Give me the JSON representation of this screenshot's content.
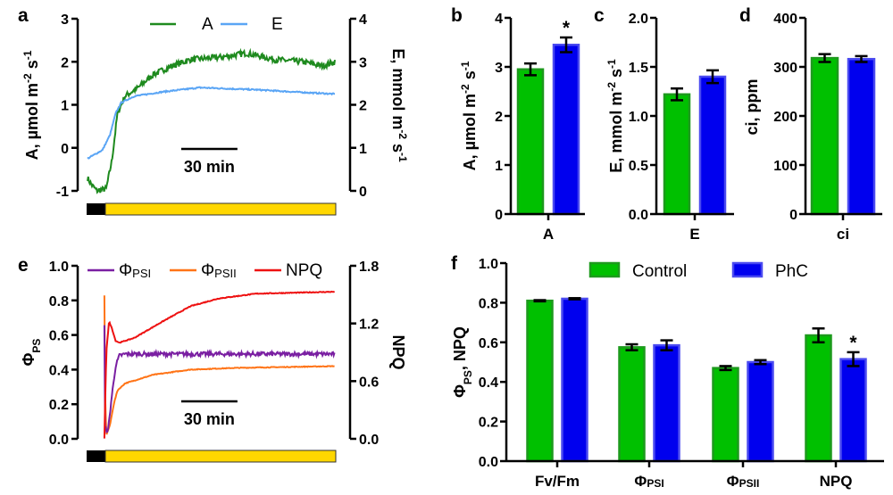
{
  "chart_data": [
    {
      "panel": "a",
      "type": "line",
      "legend": [
        {
          "name": "A",
          "color": "#1e8a1e"
        },
        {
          "name": "E",
          "color": "#5aa5f5"
        }
      ],
      "x_range_min": [
        0,
        132
      ],
      "scale_bar": {
        "minutes": 30,
        "label": "30 min"
      },
      "light_regime": {
        "dark_min": [
          0,
          10
        ],
        "light_min": [
          10,
          132
        ],
        "dark_color": "#000000",
        "light_color": "#ffd700"
      },
      "y_left": {
        "label_parts": [
          {
            "t": "A, µmol m"
          },
          {
            "t": "-2",
            "sup": true
          },
          {
            "t": " s"
          },
          {
            "t": "-1",
            "sup": true
          }
        ],
        "ticks": [
          "-1",
          "0",
          "1",
          "2",
          "3"
        ],
        "range": [
          -1,
          3
        ]
      },
      "y_right": {
        "label_parts": [
          {
            "t": "E, mmol m"
          },
          {
            "t": "-2",
            "sup": true
          },
          {
            "t": " s"
          },
          {
            "t": "-1",
            "sup": true
          }
        ],
        "ticks": [
          "0",
          "1",
          "2",
          "3",
          "4"
        ],
        "range": [
          0,
          4
        ]
      },
      "series": [
        {
          "name": "A",
          "axis": "left",
          "color": "#1e8a1e",
          "noise": 0.07,
          "points": [
            [
              0,
              -0.7
            ],
            [
              2,
              -0.85
            ],
            [
              5,
              -1.0
            ],
            [
              10,
              -0.95
            ],
            [
              13,
              -0.3
            ],
            [
              16,
              0.8
            ],
            [
              20,
              1.2
            ],
            [
              27,
              1.4
            ],
            [
              35,
              1.7
            ],
            [
              45,
              1.9
            ],
            [
              55,
              2.05
            ],
            [
              70,
              2.1
            ],
            [
              85,
              2.2
            ],
            [
              100,
              2.05
            ],
            [
              115,
              2.0
            ],
            [
              125,
              1.9
            ],
            [
              132,
              2.0
            ]
          ]
        },
        {
          "name": "E",
          "axis": "right",
          "color": "#5aa5f5",
          "noise": 0.015,
          "points": [
            [
              0,
              0.75
            ],
            [
              8,
              0.95
            ],
            [
              12,
              1.3
            ],
            [
              15,
              1.8
            ],
            [
              18,
              2.05
            ],
            [
              25,
              2.2
            ],
            [
              40,
              2.3
            ],
            [
              60,
              2.4
            ],
            [
              90,
              2.35
            ],
            [
              110,
              2.3
            ],
            [
              132,
              2.25
            ]
          ]
        }
      ]
    },
    {
      "panel": "b",
      "type": "bar",
      "categories": [
        {
          "main": "A",
          "sub": ""
        }
      ],
      "ylabel_parts": [
        {
          "t": "A, µmol m"
        },
        {
          "t": "-2",
          "sup": true
        },
        {
          "t": " s"
        },
        {
          "t": "-1",
          "sup": true
        }
      ],
      "ticks": [
        "0",
        "1",
        "2",
        "3",
        "4"
      ],
      "ylim": [
        0,
        4
      ],
      "series": [
        {
          "name": "Control",
          "color": "#00c000",
          "values": [
            2.95
          ],
          "errors": [
            0.12
          ],
          "significance": [
            ""
          ]
        },
        {
          "name": "PhC",
          "color": "#0000ee",
          "values": [
            3.45
          ],
          "errors": [
            0.15
          ],
          "significance": [
            "*"
          ]
        }
      ]
    },
    {
      "panel": "c",
      "type": "bar",
      "categories": [
        {
          "main": "E",
          "sub": ""
        }
      ],
      "ylabel_parts": [
        {
          "t": "E, mmol m"
        },
        {
          "t": "-2",
          "sup": true
        },
        {
          "t": " s"
        },
        {
          "t": "-1",
          "sup": true
        }
      ],
      "ticks": [
        "0.0",
        "0.5",
        "1.0",
        "1.5",
        "2.0"
      ],
      "ylim": [
        0,
        2
      ],
      "series": [
        {
          "name": "Control",
          "color": "#00c000",
          "values": [
            1.22
          ],
          "errors": [
            0.06
          ],
          "significance": [
            ""
          ]
        },
        {
          "name": "PhC",
          "color": "#0000ee",
          "values": [
            1.4
          ],
          "errors": [
            0.065
          ],
          "significance": [
            ""
          ]
        }
      ]
    },
    {
      "panel": "d",
      "type": "bar",
      "categories": [
        {
          "main": "ci",
          "sub": ""
        }
      ],
      "ylabel_parts": [
        {
          "t": "ci, ppm"
        }
      ],
      "ticks": [
        "0",
        "100",
        "200",
        "300",
        "400"
      ],
      "ylim": [
        0,
        400
      ],
      "series": [
        {
          "name": "Control",
          "color": "#00c000",
          "values": [
            318
          ],
          "errors": [
            8
          ],
          "significance": [
            ""
          ]
        },
        {
          "name": "PhC",
          "color": "#0000ee",
          "values": [
            316
          ],
          "errors": [
            6
          ],
          "significance": [
            ""
          ]
        }
      ]
    },
    {
      "panel": "e",
      "type": "line",
      "legend": [
        {
          "name": "Φ",
          "sub": "PSI",
          "color": "#7a1fa2"
        },
        {
          "name": "Φ",
          "sub": "PSII",
          "color": "#ff7417"
        },
        {
          "name": "NPQ",
          "sub": "",
          "color": "#ee1111"
        }
      ],
      "x_range_min": [
        0,
        132
      ],
      "scale_bar": {
        "minutes": 30,
        "label": "30 min"
      },
      "light_regime": {
        "dark_min": [
          0,
          10
        ],
        "light_min": [
          10,
          132
        ],
        "dark_color": "#000000",
        "light_color": "#ffd700"
      },
      "y_left": {
        "label_parts": [
          {
            "t": "Φ"
          },
          {
            "t": "PS",
            "sub": true
          }
        ],
        "ticks": [
          "0.0",
          "0.2",
          "0.4",
          "0.6",
          "0.8",
          "1.0"
        ],
        "range": [
          0,
          1
        ]
      },
      "y_right": {
        "label_parts": [
          {
            "t": "NPQ"
          }
        ],
        "ticks": [
          "0.0",
          "0.6",
          "1.2",
          "1.8"
        ],
        "range": [
          0,
          1.8
        ]
      },
      "series": [
        {
          "name": "ΦPSII",
          "axis": "left",
          "color": "#ff7417",
          "noise": 0.002,
          "points": [
            [
              9,
              0.83
            ],
            [
              9.3,
              0.3
            ],
            [
              10,
              0.02
            ],
            [
              12,
              0.08
            ],
            [
              14,
              0.2
            ],
            [
              16,
              0.28
            ],
            [
              20,
              0.32
            ],
            [
              35,
              0.37
            ],
            [
              55,
              0.4
            ],
            [
              80,
              0.41
            ],
            [
              132,
              0.42
            ]
          ]
        },
        {
          "name": "ΦPSI",
          "axis": "left",
          "color": "#7a1fa2",
          "noise": 0.012,
          "points": [
            [
              9,
              0.65
            ],
            [
              9.3,
              0.05
            ],
            [
              11,
              0.05
            ],
            [
              13,
              0.25
            ],
            [
              15,
              0.42
            ],
            [
              17,
              0.48
            ],
            [
              20,
              0.49
            ],
            [
              132,
              0.49
            ]
          ]
        },
        {
          "name": "NPQ",
          "axis": "right",
          "color": "#ee1111",
          "noise": 0.004,
          "points": [
            [
              9,
              0.0
            ],
            [
              10,
              0.9
            ],
            [
              11.5,
              1.22
            ],
            [
              13,
              1.15
            ],
            [
              15,
              1.02
            ],
            [
              17,
              1.0
            ],
            [
              25,
              1.05
            ],
            [
              40,
              1.22
            ],
            [
              55,
              1.38
            ],
            [
              70,
              1.46
            ],
            [
              90,
              1.51
            ],
            [
              132,
              1.53
            ]
          ]
        }
      ]
    },
    {
      "panel": "f",
      "type": "bar",
      "categories": [
        {
          "main": "Fv/Fm",
          "sub": ""
        },
        {
          "main": "Φ",
          "sub": "PSI"
        },
        {
          "main": "Φ",
          "sub": "PSII"
        },
        {
          "main": "NPQ",
          "sub": ""
        }
      ],
      "ylabel_parts": [
        {
          "t": "Φ"
        },
        {
          "t": "PS",
          "sub": true
        },
        {
          "t": ", NPQ"
        }
      ],
      "ticks": [
        "0.0",
        "0.2",
        "0.4",
        "0.6",
        "0.8",
        "1.0"
      ],
      "ylim": [
        0,
        1
      ],
      "legend": [
        "Control",
        "PhC"
      ],
      "legend_placement": "top",
      "series": [
        {
          "name": "Control",
          "color": "#00c000",
          "values": [
            0.81,
            0.575,
            0.47,
            0.635
          ],
          "errors": [
            0.003,
            0.015,
            0.01,
            0.035
          ],
          "significance": [
            "",
            "",
            "",
            ""
          ]
        },
        {
          "name": "PhC",
          "color": "#0000ee",
          "values": [
            0.82,
            0.585,
            0.5,
            0.515
          ],
          "errors": [
            0.003,
            0.025,
            0.01,
            0.035
          ],
          "significance": [
            "",
            "",
            "",
            "*"
          ]
        }
      ]
    }
  ]
}
